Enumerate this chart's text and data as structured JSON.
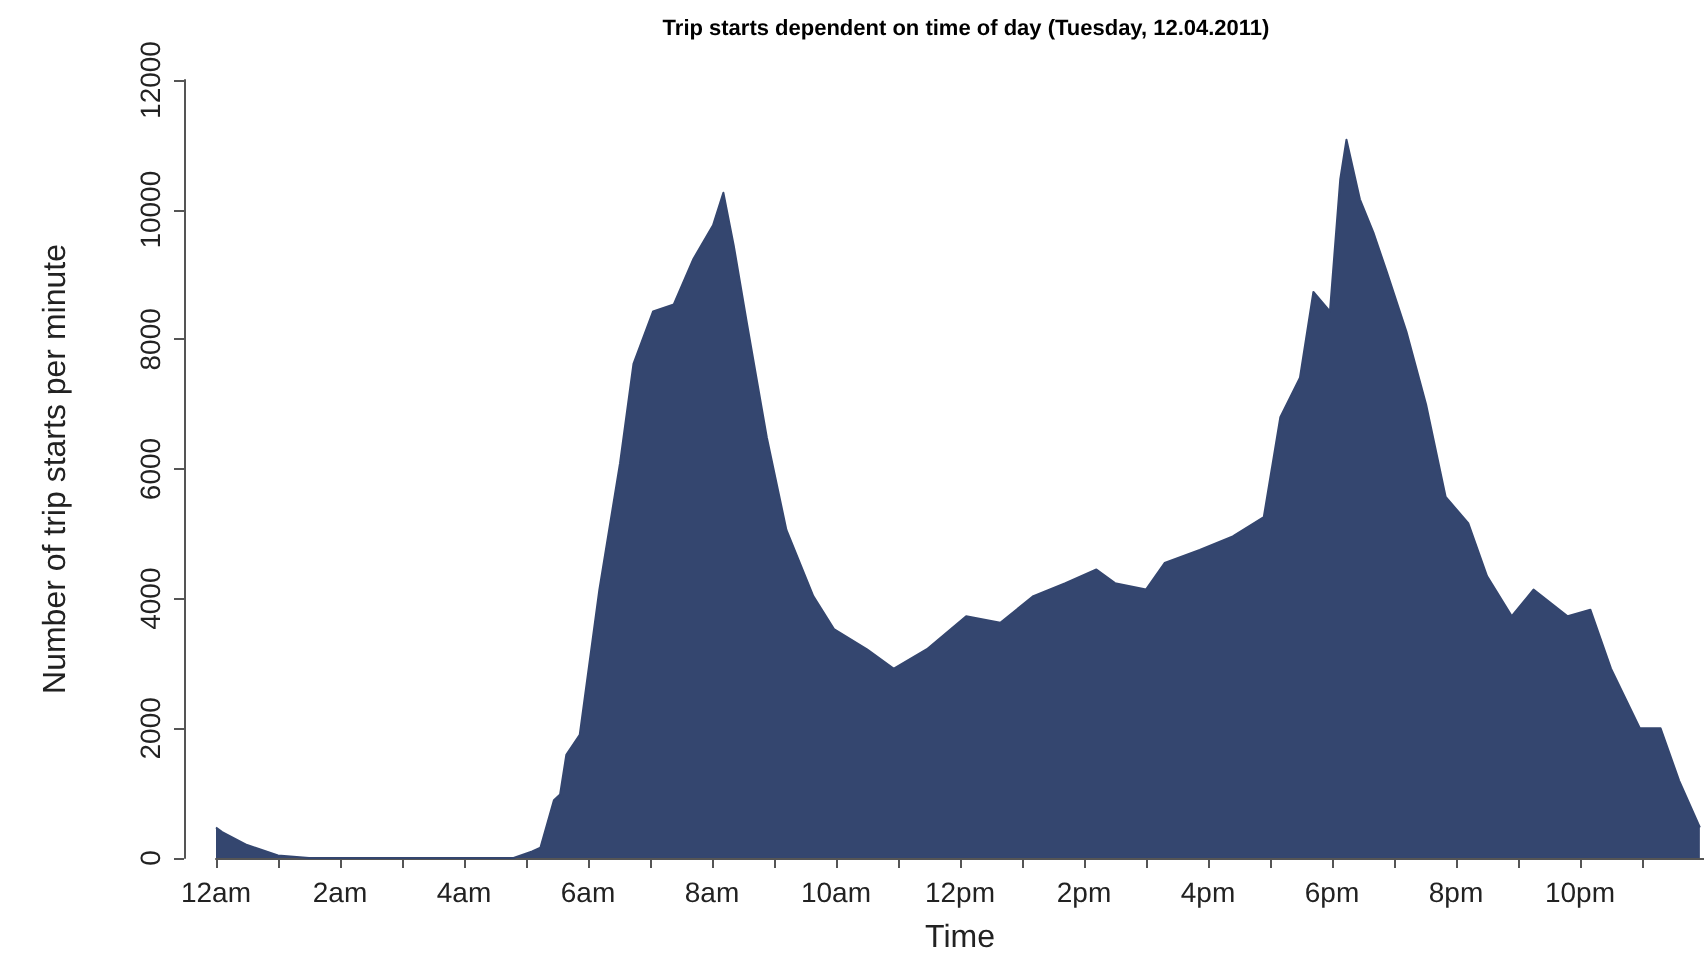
{
  "chart_data": {
    "type": "area",
    "title": "Trip starts dependent on time of day (Tuesday, 12.04.2011)",
    "xlabel": "Time",
    "ylabel": "Number of trip starts per minute",
    "grid": false,
    "marker": "none",
    "xlim": [
      "2011-04-12T00:00",
      "2011-04-13T00:00"
    ],
    "ylim": [
      0,
      12000
    ],
    "yticks": [
      0,
      2000,
      4000,
      6000,
      8000,
      10000,
      12000
    ],
    "xticks": [
      {
        "value": "2011-04-12T00:00",
        "label": "12am"
      },
      {
        "value": "2011-04-12T01:00",
        "label": null
      },
      {
        "value": "2011-04-12T02:00",
        "label": "2am"
      },
      {
        "value": "2011-04-12T03:00",
        "label": null
      },
      {
        "value": "2011-04-12T04:00",
        "label": "4am"
      },
      {
        "value": "2011-04-12T05:00",
        "label": null
      },
      {
        "value": "2011-04-12T06:00",
        "label": "6am"
      },
      {
        "value": "2011-04-12T07:00",
        "label": null
      },
      {
        "value": "2011-04-12T08:00",
        "label": "8am"
      },
      {
        "value": "2011-04-12T09:00",
        "label": null
      },
      {
        "value": "2011-04-12T10:00",
        "label": "10am"
      },
      {
        "value": "2011-04-12T11:00",
        "label": null
      },
      {
        "value": "2011-04-12T12:00",
        "label": "12pm"
      },
      {
        "value": "2011-04-12T13:00",
        "label": null
      },
      {
        "value": "2011-04-12T14:00",
        "label": "2pm"
      },
      {
        "value": "2011-04-12T15:00",
        "label": null
      },
      {
        "value": "2011-04-12T16:00",
        "label": "4pm"
      },
      {
        "value": "2011-04-12T17:00",
        "label": null
      },
      {
        "value": "2011-04-12T18:00",
        "label": "6pm"
      },
      {
        "value": "2011-04-12T19:00",
        "label": null
      },
      {
        "value": "2011-04-12T20:00",
        "label": "8pm"
      },
      {
        "value": "2011-04-12T21:00",
        "label": null
      },
      {
        "value": "2011-04-12T22:00",
        "label": "10pm"
      },
      {
        "value": "2011-04-12T23:00",
        "label": null
      }
    ],
    "x": [
      "2011-04-12T00:00",
      "2011-04-12T00:06",
      "2011-04-12T00:30",
      "2011-04-12T01:00",
      "2011-04-12T01:30",
      "2011-04-12T02:00",
      "2011-04-12T03:00",
      "2011-04-12T04:00",
      "2011-04-12T04:48",
      "2011-04-12T05:06",
      "2011-04-12T05:14",
      "2011-04-12T05:27",
      "2011-04-12T05:33",
      "2011-04-12T05:39",
      "2011-04-12T05:52",
      "2011-04-12T06:11",
      "2011-04-12T06:31",
      "2011-04-12T06:44",
      "2011-04-12T07:03",
      "2011-04-12T07:23",
      "2011-04-12T07:42",
      "2011-04-12T08:01",
      "2011-04-12T08:11",
      "2011-04-12T08:21",
      "2011-04-12T08:34",
      "2011-04-12T08:53",
      "2011-04-12T09:12",
      "2011-04-12T09:38",
      "2011-04-12T09:58",
      "2011-04-12T10:30",
      "2011-04-12T10:56",
      "2011-04-12T11:28",
      "2011-04-12T12:06",
      "2011-04-12T12:39",
      "2011-04-12T13:11",
      "2011-04-12T13:42",
      "2011-04-12T14:12",
      "2011-04-12T14:30",
      "2011-04-12T15:00",
      "2011-04-12T15:18",
      "2011-04-12T15:52",
      "2011-04-12T16:24",
      "2011-04-12T16:54",
      "2011-04-12T17:10",
      "2011-04-12T17:29",
      "2011-04-12T17:42",
      "2011-04-12T17:58",
      "2011-04-12T18:08",
      "2011-04-12T18:14",
      "2011-04-12T18:27",
      "2011-04-12T18:40",
      "2011-04-12T18:53",
      "2011-04-12T19:12",
      "2011-04-12T19:31",
      "2011-04-12T19:50",
      "2011-04-12T20:12",
      "2011-04-12T20:30",
      "2011-04-12T20:54",
      "2011-04-12T21:15",
      "2011-04-12T21:48",
      "2011-04-12T22:10",
      "2011-04-12T22:30",
      "2011-04-12T22:58",
      "2011-04-12T23:18",
      "2011-04-12T23:36",
      "2011-04-12T23:56"
    ],
    "series": [
      {
        "color": "#34466f",
        "values": [
          470,
          400,
          200,
          40,
          0,
          0,
          0,
          0,
          0,
          100,
          160,
          890,
          980,
          1590,
          1900,
          4140,
          6090,
          7620,
          8430,
          8540,
          9240,
          9760,
          10260,
          9450,
          8230,
          6490,
          5060,
          4040,
          3530,
          3220,
          2920,
          3220,
          3730,
          3630,
          4040,
          4240,
          4450,
          4240,
          4140,
          4550,
          4750,
          4960,
          5260,
          6800,
          7410,
          8730,
          8430,
          10470,
          11080,
          10160,
          9650,
          9040,
          8120,
          7000,
          5570,
          5160,
          4350,
          3730,
          4140,
          3730,
          3830,
          2920,
          2000,
          2000,
          1190,
          470
        ]
      }
    ]
  }
}
